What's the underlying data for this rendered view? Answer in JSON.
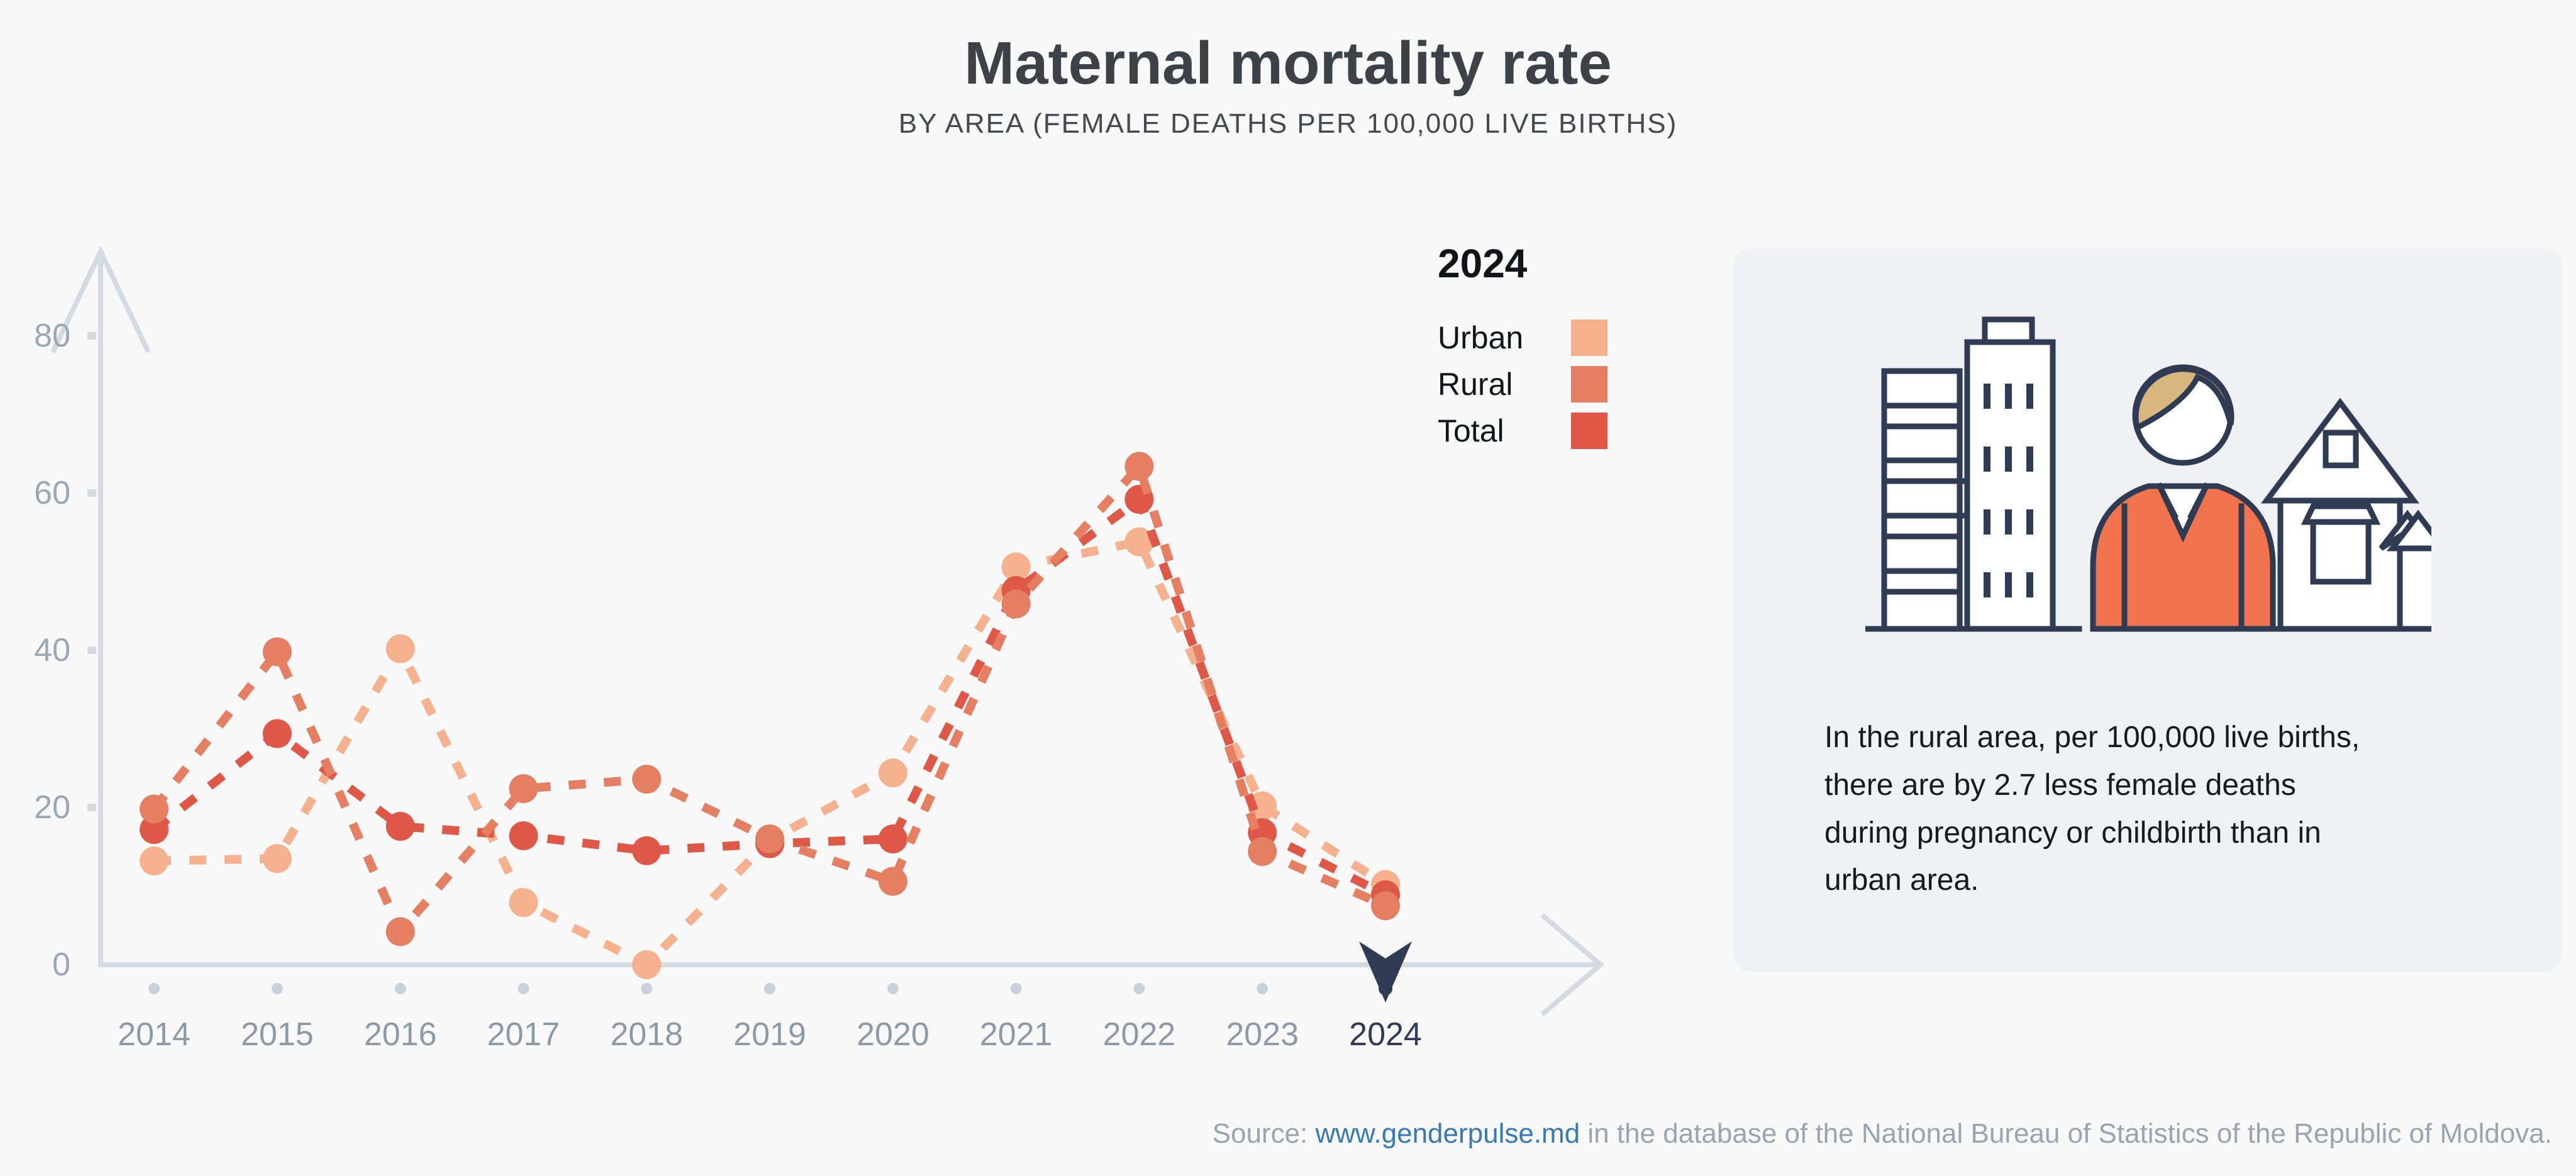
{
  "chart_data": {
    "type": "line",
    "title": "Maternal mortality rate",
    "subtitle": "BY AREA (FEMALE DEATHS PER 100,000 LIVE BIRTHS)",
    "x": [
      "2014",
      "2015",
      "2016",
      "2017",
      "2018",
      "2019",
      "2020",
      "2021",
      "2022",
      "2023",
      "2024"
    ],
    "series": [
      {
        "name": "Urban",
        "color": "#F5B18E",
        "values": [
          13.2,
          13.5,
          40.2,
          7.9,
          0,
          15.8,
          24.4,
          50.6,
          53.8,
          20.2,
          10.2
        ]
      },
      {
        "name": "Total",
        "color": "#DF5847",
        "values": [
          17.2,
          29.4,
          17.6,
          16.4,
          14.5,
          15.4,
          16.0,
          47.6,
          59.2,
          16.8,
          8.9
        ]
      },
      {
        "name": "Rural",
        "color": "#E67E62",
        "values": [
          19.8,
          39.8,
          4.2,
          22.4,
          23.6,
          16.0,
          10.6,
          45.9,
          63.4,
          14.4,
          7.5
        ]
      }
    ],
    "yticks": [
      0,
      20,
      40,
      60,
      80
    ],
    "ylim": [
      0,
      88
    ],
    "highlighted_year": "2024",
    "line_style": "dashed",
    "grid": false,
    "legend_position": "top-right"
  },
  "legend": {
    "selected_year": "2024",
    "items": [
      {
        "label": "Urban",
        "color": "#F5B18E"
      },
      {
        "label": "Rural",
        "color": "#E67E62"
      },
      {
        "label": "Total",
        "color": "#DF5847"
      }
    ]
  },
  "infocard": {
    "text": "In the rural area, per 100,000 live births,\nthere are by 2.7 less female deaths\nduring pregnancy or childbirth than in\nurban area.",
    "illustration": "city-buildings, woman, village-houses"
  },
  "source": {
    "prefix": "Source: ",
    "link": "www.genderpulse.md",
    "suffix": " in the database of the National Bureau of Statistics of the Republic of Moldova."
  },
  "colors": {
    "background": "#F8F8F9",
    "panel": "#EFF1F4",
    "axis": "#D3DAE1",
    "tick_dot": "#C8D1DA",
    "tick_label": "#9AA7B4",
    "year_label": "#8C99A7",
    "highlight": "#2F3B52",
    "urban": "#F5B18E",
    "rural": "#E67E62",
    "total": "#DF5847",
    "link": "#3779B5",
    "source_text": "#98A4B1",
    "jacket": "#F0734D",
    "hair": "#D7B77E"
  }
}
